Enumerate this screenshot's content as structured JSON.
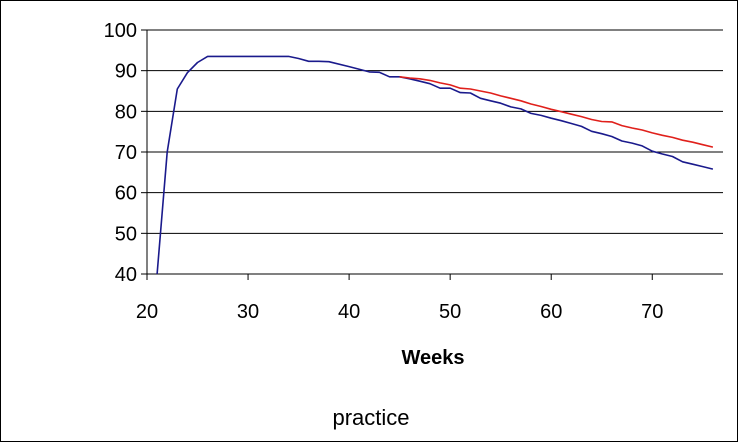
{
  "chart_data": {
    "type": "line",
    "title": "",
    "xlabel": "Weeks",
    "ylabel": "",
    "xlim": [
      20,
      77
    ],
    "ylim": [
      40,
      100
    ],
    "x_ticks": [
      20,
      30,
      40,
      50,
      60,
      70
    ],
    "y_ticks": [
      40,
      50,
      60,
      70,
      80,
      90,
      100
    ],
    "grid": "horizontal",
    "legend": "none",
    "caption": "practice",
    "series": [
      {
        "color": "#1a1a8c",
        "points": [
          [
            21,
            40
          ],
          [
            22,
            70
          ],
          [
            23,
            85.5
          ],
          [
            24,
            89.5
          ],
          [
            25,
            92
          ],
          [
            26,
            93.5
          ],
          [
            28,
            93.5
          ],
          [
            30,
            93.5
          ],
          [
            32,
            93.5
          ],
          [
            34,
            93.5
          ],
          [
            35,
            93
          ],
          [
            36,
            92.3
          ],
          [
            37,
            92.3
          ],
          [
            38,
            92.2
          ],
          [
            40,
            91
          ],
          [
            42,
            89.7
          ],
          [
            43,
            89.6
          ],
          [
            44,
            88.5
          ],
          [
            45,
            88.5
          ],
          [
            46,
            88
          ],
          [
            47,
            87.4
          ],
          [
            48,
            86.8
          ],
          [
            49,
            85.7
          ],
          [
            50,
            85.7
          ],
          [
            51,
            84.6
          ],
          [
            52,
            84.5
          ],
          [
            53,
            83.2
          ],
          [
            54,
            82.6
          ],
          [
            55,
            82
          ],
          [
            56,
            81.1
          ],
          [
            57,
            80.6
          ],
          [
            58,
            79.5
          ],
          [
            59,
            79
          ],
          [
            60,
            78.3
          ],
          [
            61,
            77.7
          ],
          [
            62,
            77
          ],
          [
            63,
            76.3
          ],
          [
            64,
            75.1
          ],
          [
            65,
            74.5
          ],
          [
            66,
            73.8
          ],
          [
            67,
            72.7
          ],
          [
            68,
            72.2
          ],
          [
            69,
            71.5
          ],
          [
            70,
            70.2
          ],
          [
            71,
            69.5
          ],
          [
            72,
            68.9
          ],
          [
            73,
            67.6
          ],
          [
            74,
            67
          ],
          [
            75,
            66.4
          ],
          [
            76,
            65.8
          ]
        ]
      },
      {
        "color": "#e0201b",
        "points": [
          [
            45,
            88.5
          ],
          [
            46,
            88.2
          ],
          [
            47,
            88
          ],
          [
            48,
            87.6
          ],
          [
            49,
            87
          ],
          [
            50,
            86.5
          ],
          [
            51,
            85.7
          ],
          [
            52,
            85.5
          ],
          [
            53,
            85
          ],
          [
            54,
            84.5
          ],
          [
            55,
            83.8
          ],
          [
            56,
            83.2
          ],
          [
            57,
            82.6
          ],
          [
            58,
            81.8
          ],
          [
            59,
            81.2
          ],
          [
            60,
            80.5
          ],
          [
            61,
            79.9
          ],
          [
            62,
            79.3
          ],
          [
            63,
            78.7
          ],
          [
            64,
            78
          ],
          [
            65,
            77.5
          ],
          [
            66,
            77.4
          ],
          [
            67,
            76.5
          ],
          [
            68,
            75.9
          ],
          [
            69,
            75.4
          ],
          [
            70,
            74.7
          ],
          [
            71,
            74.1
          ],
          [
            72,
            73.6
          ],
          [
            73,
            72.9
          ],
          [
            74,
            72.4
          ],
          [
            75,
            71.8
          ],
          [
            76,
            71.2
          ]
        ]
      }
    ]
  }
}
